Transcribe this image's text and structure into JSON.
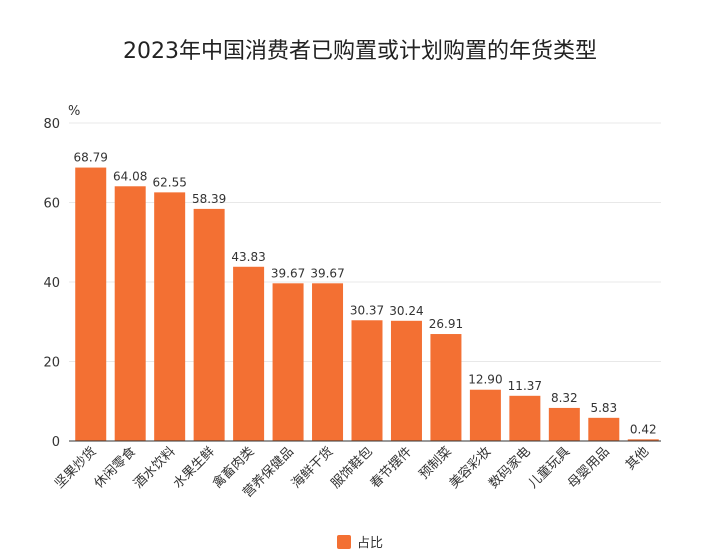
{
  "title": "2023年中国消费者已购置或计划购置的年货类型",
  "colors": {
    "bar": "#f37033",
    "grid": "#e8e8e8",
    "axis": "#333333",
    "text": "#333333"
  },
  "chart_data": {
    "type": "bar",
    "title": "2023年中国消费者已购置或计划购置的年货类型",
    "ylabel": "%",
    "xlabel": "",
    "ylim": [
      0,
      80
    ],
    "yticks": [
      0,
      20,
      40,
      60,
      80
    ],
    "grid": true,
    "legend": "bottom-center",
    "categories": [
      "坚果炒货",
      "休闲零食",
      "酒水饮料",
      "水果生鲜",
      "禽畜肉类",
      "营养保健品",
      "海鲜干货",
      "服饰鞋包",
      "春节摆件",
      "预制菜",
      "美容彩妆",
      "数码家电",
      "儿童玩具",
      "母婴用品",
      "其他"
    ],
    "series": [
      {
        "name": "占比",
        "values": [
          68.79,
          64.08,
          62.55,
          58.39,
          43.83,
          39.67,
          39.67,
          30.37,
          30.24,
          26.91,
          12.9,
          11.37,
          8.32,
          5.83,
          0.42
        ]
      }
    ]
  }
}
